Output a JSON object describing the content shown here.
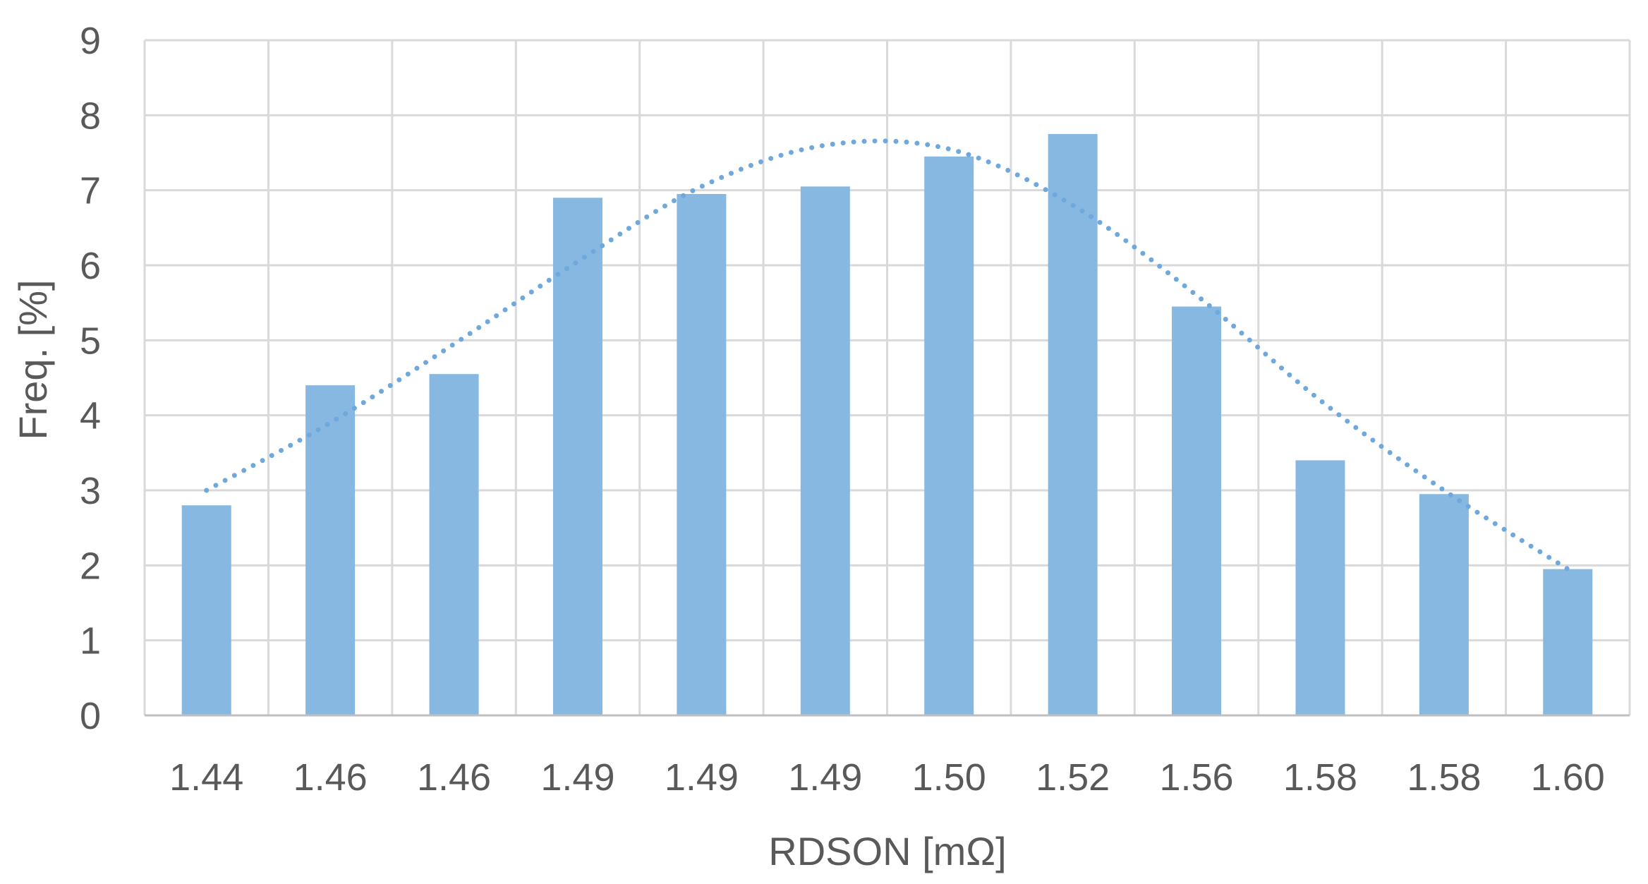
{
  "chart_data": {
    "type": "bar",
    "title": "",
    "xlabel": "RDSON [mΩ]",
    "ylabel": "Freq. [%]",
    "categories": [
      "1.44",
      "1.46",
      "1.46",
      "1.49",
      "1.49",
      "1.49",
      "1.50",
      "1.52",
      "1.56",
      "1.58",
      "1.58",
      "1.60"
    ],
    "ylim": [
      0,
      9
    ],
    "yticks": [
      "0",
      "1",
      "2",
      "3",
      "4",
      "5",
      "6",
      "7",
      "8",
      "9"
    ],
    "grid": true,
    "series": [
      {
        "type": "bar",
        "values": [
          2.8,
          4.4,
          4.55,
          6.9,
          6.95,
          7.05,
          7.45,
          7.75,
          5.45,
          3.4,
          2.95,
          1.95
        ]
      },
      {
        "type": "line",
        "style": "dotted",
        "values": [
          3.0,
          3.9,
          4.95,
          6.05,
          7.05,
          7.6,
          7.55,
          6.8,
          5.6,
          4.2,
          3.0,
          1.95
        ]
      }
    ],
    "colors": {
      "bar": "#86b8e1",
      "trendline": "#6fa8dc",
      "grid": "#d9d9d9",
      "axis": "#bfbfbf",
      "text": "#595959"
    }
  }
}
